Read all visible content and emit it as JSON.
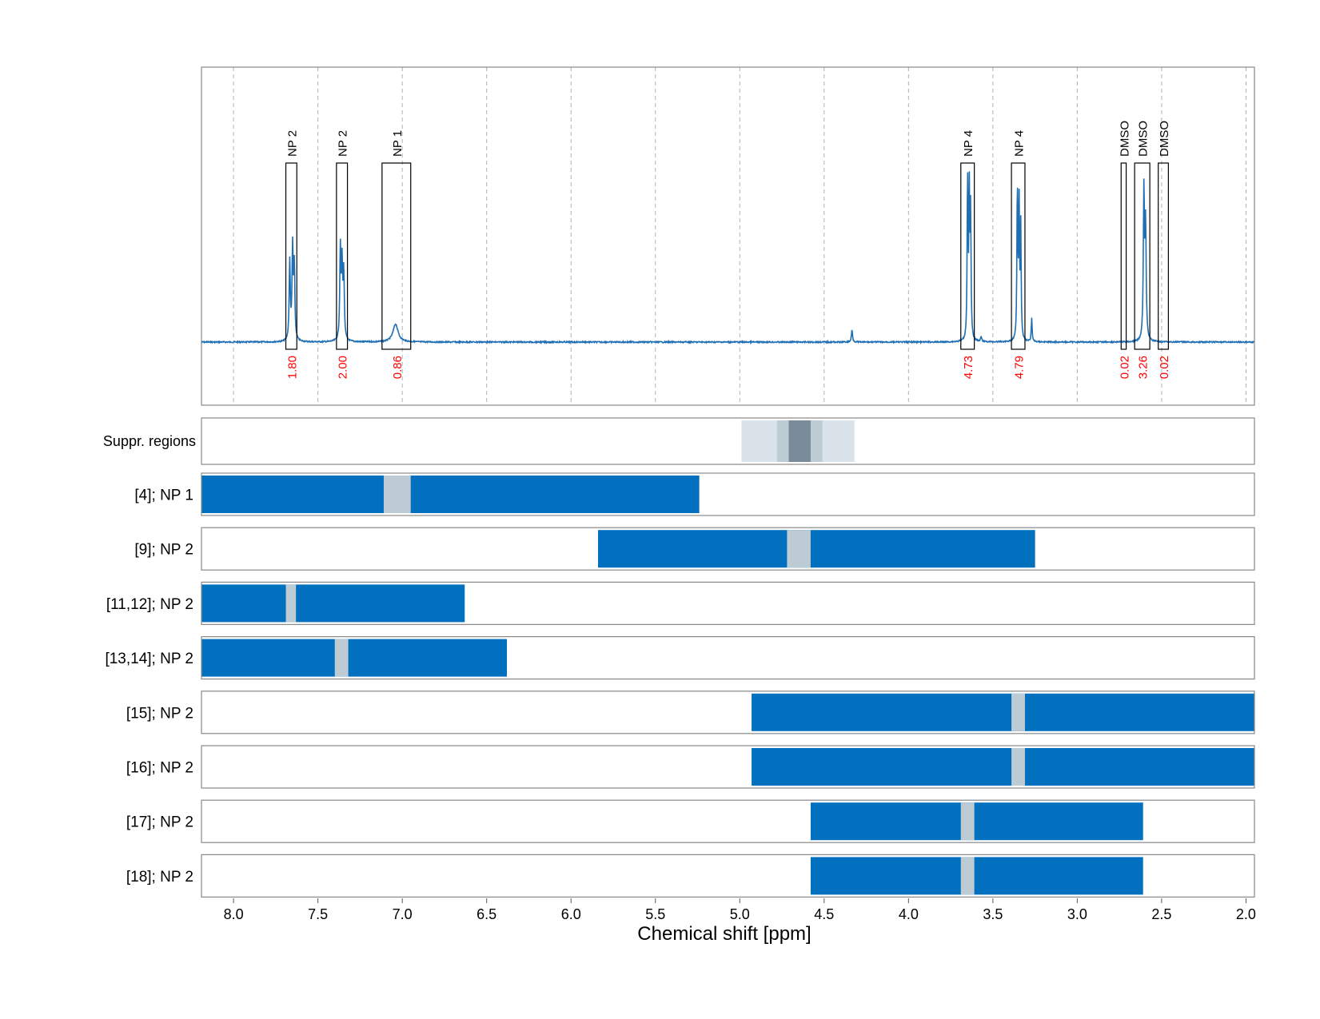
{
  "colors": {
    "spectrum": "#1f6fb5",
    "bar": "#0070bf",
    "gap": "#bccbd4",
    "integral_label": "#ff0000",
    "supp_light": "#dbe3ea",
    "supp_mid": "#bccbd4",
    "supp_dark": "#7a8b9a",
    "frame": "#888888",
    "grid": "#b0b0b0"
  },
  "chart_data": {
    "type": "nmr-spectrum-with-range-bars",
    "xlabel": "Chemical shift [ppm]",
    "xlim": [
      8.19,
      1.95
    ],
    "ticks": [
      8.0,
      7.5,
      7.0,
      6.5,
      6.0,
      5.5,
      5.0,
      4.5,
      4.0,
      3.5,
      3.0,
      2.5,
      2.0
    ],
    "tick_labels": [
      "8.0",
      "7.5",
      "7.0",
      "6.5",
      "6.0",
      "5.5",
      "5.0",
      "4.5",
      "4.0",
      "3.5",
      "3.0",
      "2.5",
      "2.0"
    ],
    "peaks": [
      {
        "ppm": 7.667,
        "height": 0.33,
        "width": 0.004
      },
      {
        "ppm": 7.65,
        "height": 0.38,
        "width": 0.004
      },
      {
        "ppm": 7.64,
        "height": 0.3,
        "width": 0.004
      },
      {
        "ppm": 7.367,
        "height": 0.38,
        "width": 0.004
      },
      {
        "ppm": 7.357,
        "height": 0.3,
        "width": 0.004
      },
      {
        "ppm": 7.347,
        "height": 0.28,
        "width": 0.004
      },
      {
        "ppm": 7.04,
        "height": 0.075,
        "width": 0.018
      },
      {
        "ppm": 4.335,
        "height": 0.05,
        "width": 0.004
      },
      {
        "ppm": 3.65,
        "height": 0.68,
        "width": 0.003
      },
      {
        "ppm": 3.64,
        "height": 0.6,
        "width": 0.003
      },
      {
        "ppm": 3.632,
        "height": 0.52,
        "width": 0.003
      },
      {
        "ppm": 3.57,
        "height": 0.02,
        "width": 0.004
      },
      {
        "ppm": 3.355,
        "height": 0.64,
        "width": 0.003
      },
      {
        "ppm": 3.345,
        "height": 0.57,
        "width": 0.003
      },
      {
        "ppm": 3.335,
        "height": 0.47,
        "width": 0.003
      },
      {
        "ppm": 3.27,
        "height": 0.1,
        "width": 0.003
      },
      {
        "ppm": 2.605,
        "height": 0.62,
        "width": 0.004
      },
      {
        "ppm": 2.595,
        "height": 0.47,
        "width": 0.004
      }
    ],
    "spectrum_ylim": [
      -0.25,
      1.0
    ],
    "annotations": [
      {
        "label": "NP 2",
        "from": 7.69,
        "to": 7.625,
        "integral": "1.80"
      },
      {
        "label": "NP 2",
        "from": 7.39,
        "to": 7.325,
        "integral": "2.00"
      },
      {
        "label": "NP 1",
        "from": 7.12,
        "to": 6.95,
        "integral": "0.86"
      },
      {
        "label": "NP 4",
        "from": 3.69,
        "to": 3.61,
        "integral": "4.73"
      },
      {
        "label": "NP 4",
        "from": 3.39,
        "to": 3.31,
        "integral": "4.79"
      },
      {
        "label": "DMSO",
        "from": 2.74,
        "to": 2.71,
        "integral": "0.02"
      },
      {
        "label": "DMSO",
        "from": 2.66,
        "to": 2.57,
        "integral": "3.26"
      },
      {
        "label": "DMSO",
        "from": 2.52,
        "to": 2.46,
        "integral": "0.02"
      }
    ],
    "suppressed_regions": [
      {
        "from": 4.99,
        "to": 4.32,
        "level": "light"
      },
      {
        "from": 4.78,
        "to": 4.51,
        "level": "mid"
      },
      {
        "from": 4.71,
        "to": 4.58,
        "level": "dark"
      }
    ],
    "rows": [
      {
        "label": "[4]; NP 1",
        "from": 8.19,
        "to": 5.24,
        "gap_from": 7.11,
        "gap_to": 6.95
      },
      {
        "label": "[9]; NP 2",
        "from": 5.84,
        "to": 3.25,
        "gap_from": 4.72,
        "gap_to": 4.58
      },
      {
        "label": "[11,12]; NP 2",
        "from": 8.19,
        "to": 6.63,
        "gap_from": 7.69,
        "gap_to": 7.63
      },
      {
        "label": "[13,14]; NP 2",
        "from": 8.19,
        "to": 6.38,
        "gap_from": 7.4,
        "gap_to": 7.32
      },
      {
        "label": "[15]; NP 2",
        "from": 4.93,
        "to": 1.95,
        "gap_from": 3.39,
        "gap_to": 3.31
      },
      {
        "label": "[16]; NP 2",
        "from": 4.93,
        "to": 1.95,
        "gap_from": 3.39,
        "gap_to": 3.31
      },
      {
        "label": "[17]; NP 2",
        "from": 4.58,
        "to": 2.61,
        "gap_from": 3.69,
        "gap_to": 3.61
      },
      {
        "label": "[18]; NP 2",
        "from": 4.58,
        "to": 2.61,
        "gap_from": 3.69,
        "gap_to": 3.61
      }
    ],
    "suppressed_label": "Suppr. regions"
  }
}
